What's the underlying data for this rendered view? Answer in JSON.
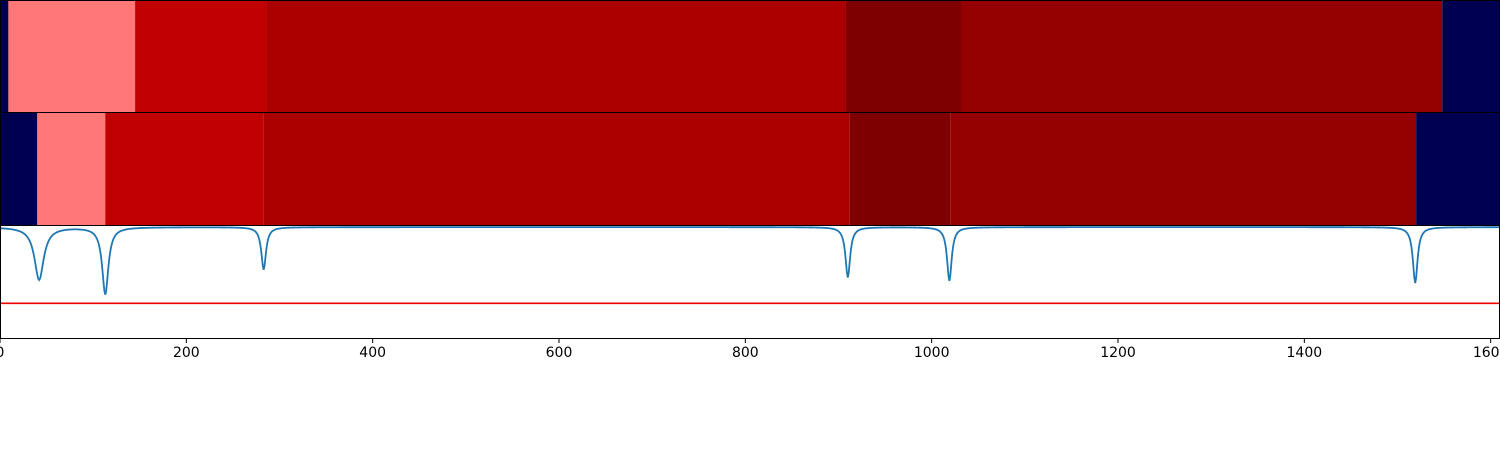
{
  "chart_data": {
    "type": "heatmap",
    "title": "",
    "xlabel": "",
    "ylabel": "",
    "xlim": [
      0,
      1610
    ],
    "grid": false,
    "legend": "none",
    "x_ticks": [
      0,
      200,
      400,
      600,
      800,
      1000,
      1200,
      1400,
      1600
    ],
    "x_tick_labels": [
      "0",
      "200",
      "400",
      "600",
      "800",
      "1000",
      "1200",
      "1400",
      "1600"
    ],
    "colors": {
      "level_0": "#000050",
      "level_1": "#ff7777",
      "level_2": "#c00000",
      "level_3": "#aa0000",
      "level_4": "#950000",
      "level_5": "#7f0000",
      "signal_line": "#1f77b4",
      "threshold_line": "#ee0000"
    },
    "tracks": [
      {
        "segments": [
          {
            "start": 0,
            "end": 9,
            "level": 0
          },
          {
            "start": 9,
            "end": 145,
            "level": 1
          },
          {
            "start": 145,
            "end": 286,
            "level": 2
          },
          {
            "start": 286,
            "end": 908,
            "level": 3
          },
          {
            "start": 908,
            "end": 1032,
            "level": 5
          },
          {
            "start": 1032,
            "end": 1548,
            "level": 4
          },
          {
            "start": 1548,
            "end": 1610,
            "level": 0
          }
        ]
      },
      {
        "segments": [
          {
            "start": 0,
            "end": 40,
            "level": 0
          },
          {
            "start": 40,
            "end": 113,
            "level": 1
          },
          {
            "start": 113,
            "end": 283,
            "level": 2
          },
          {
            "start": 283,
            "end": 912,
            "level": 3
          },
          {
            "start": 912,
            "end": 1020,
            "level": 5
          },
          {
            "start": 1020,
            "end": 1520,
            "level": 4
          },
          {
            "start": 1520,
            "end": 1610,
            "level": 0
          }
        ]
      }
    ],
    "signal": {
      "ylim": [
        0,
        1
      ],
      "baseline": 0.99,
      "threshold": 0.31,
      "dips": [
        {
          "x": 42,
          "depth": 0.47,
          "width": 6
        },
        {
          "x": 113,
          "depth": 0.6,
          "width": 4
        },
        {
          "x": 283,
          "depth": 0.38,
          "width": 3
        },
        {
          "x": 910,
          "depth": 0.45,
          "width": 3
        },
        {
          "x": 1019,
          "depth": 0.48,
          "width": 3
        },
        {
          "x": 1519,
          "depth": 0.5,
          "width": 3
        }
      ]
    }
  }
}
